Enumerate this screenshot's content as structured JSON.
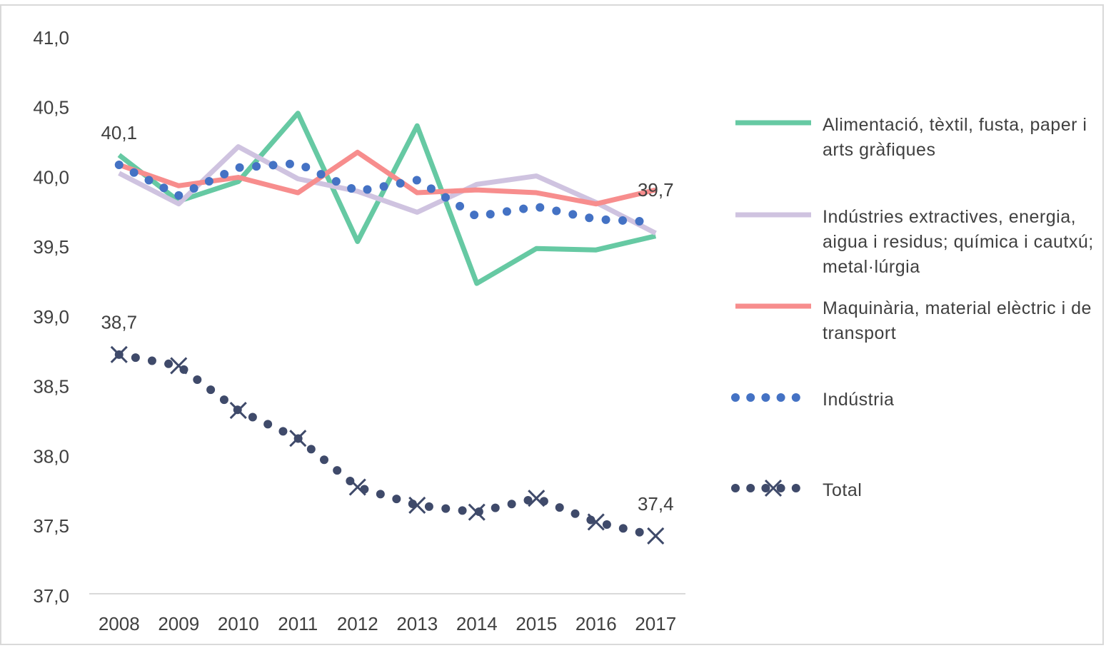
{
  "chart_data": {
    "type": "line",
    "categories": [
      "2008",
      "2009",
      "2010",
      "2011",
      "2012",
      "2013",
      "2014",
      "2015",
      "2016",
      "2017"
    ],
    "ylim": [
      37,
      41
    ],
    "yticks": [
      {
        "value": 37,
        "label": "37,0"
      },
      {
        "value": 37.5,
        "label": "37,5"
      },
      {
        "value": 38,
        "label": "38,0"
      },
      {
        "value": 38.5,
        "label": "38,5"
      },
      {
        "value": 39,
        "label": "39,0"
      },
      {
        "value": 39.5,
        "label": "39,5"
      },
      {
        "value": 40,
        "label": "40,0"
      },
      {
        "value": 40.5,
        "label": "40,5"
      },
      {
        "value": 41,
        "label": "41,0"
      }
    ],
    "grid": false,
    "legend": "right",
    "series": [
      {
        "name": "Alimentació, tèxtil, fusta, paper i arts gràfiques",
        "color": "#66c9a3",
        "dash": "solid",
        "values": [
          40.17,
          39.84,
          39.98,
          40.47,
          39.55,
          40.38,
          39.25,
          39.5,
          39.49,
          39.59
        ]
      },
      {
        "name": "Indústries extractives, energia, aigua i residus; química i cautxú; metal·lúrgia",
        "color": "#cfc3e0",
        "dash": "solid",
        "values": [
          40.04,
          39.82,
          40.23,
          40.0,
          39.91,
          39.76,
          39.96,
          40.02,
          39.83,
          39.61
        ]
      },
      {
        "name": "Maquinària, material elèctric i de transport",
        "color": "#f78d8d",
        "dash": "solid",
        "values": [
          40.1,
          39.95,
          40.01,
          39.9,
          40.19,
          39.9,
          39.92,
          39.9,
          39.82,
          39.92
        ]
      },
      {
        "name": "Indústria",
        "color": "#4472c4",
        "dash": "dotted",
        "values": [
          40.1,
          39.88,
          40.08,
          40.11,
          39.91,
          39.99,
          39.73,
          39.8,
          39.71,
          39.69
        ],
        "value_labels": [
          "40,1",
          null,
          null,
          null,
          null,
          null,
          null,
          null,
          null,
          "39,7"
        ]
      },
      {
        "name": "Total",
        "color": "#3f4a6a",
        "dash": "dotted",
        "marker": "x",
        "values": [
          38.74,
          38.66,
          38.34,
          38.14,
          37.79,
          37.66,
          37.61,
          37.71,
          37.54,
          37.44
        ],
        "value_labels": [
          "38,7",
          null,
          null,
          null,
          null,
          null,
          null,
          null,
          null,
          "37,4"
        ]
      }
    ]
  }
}
